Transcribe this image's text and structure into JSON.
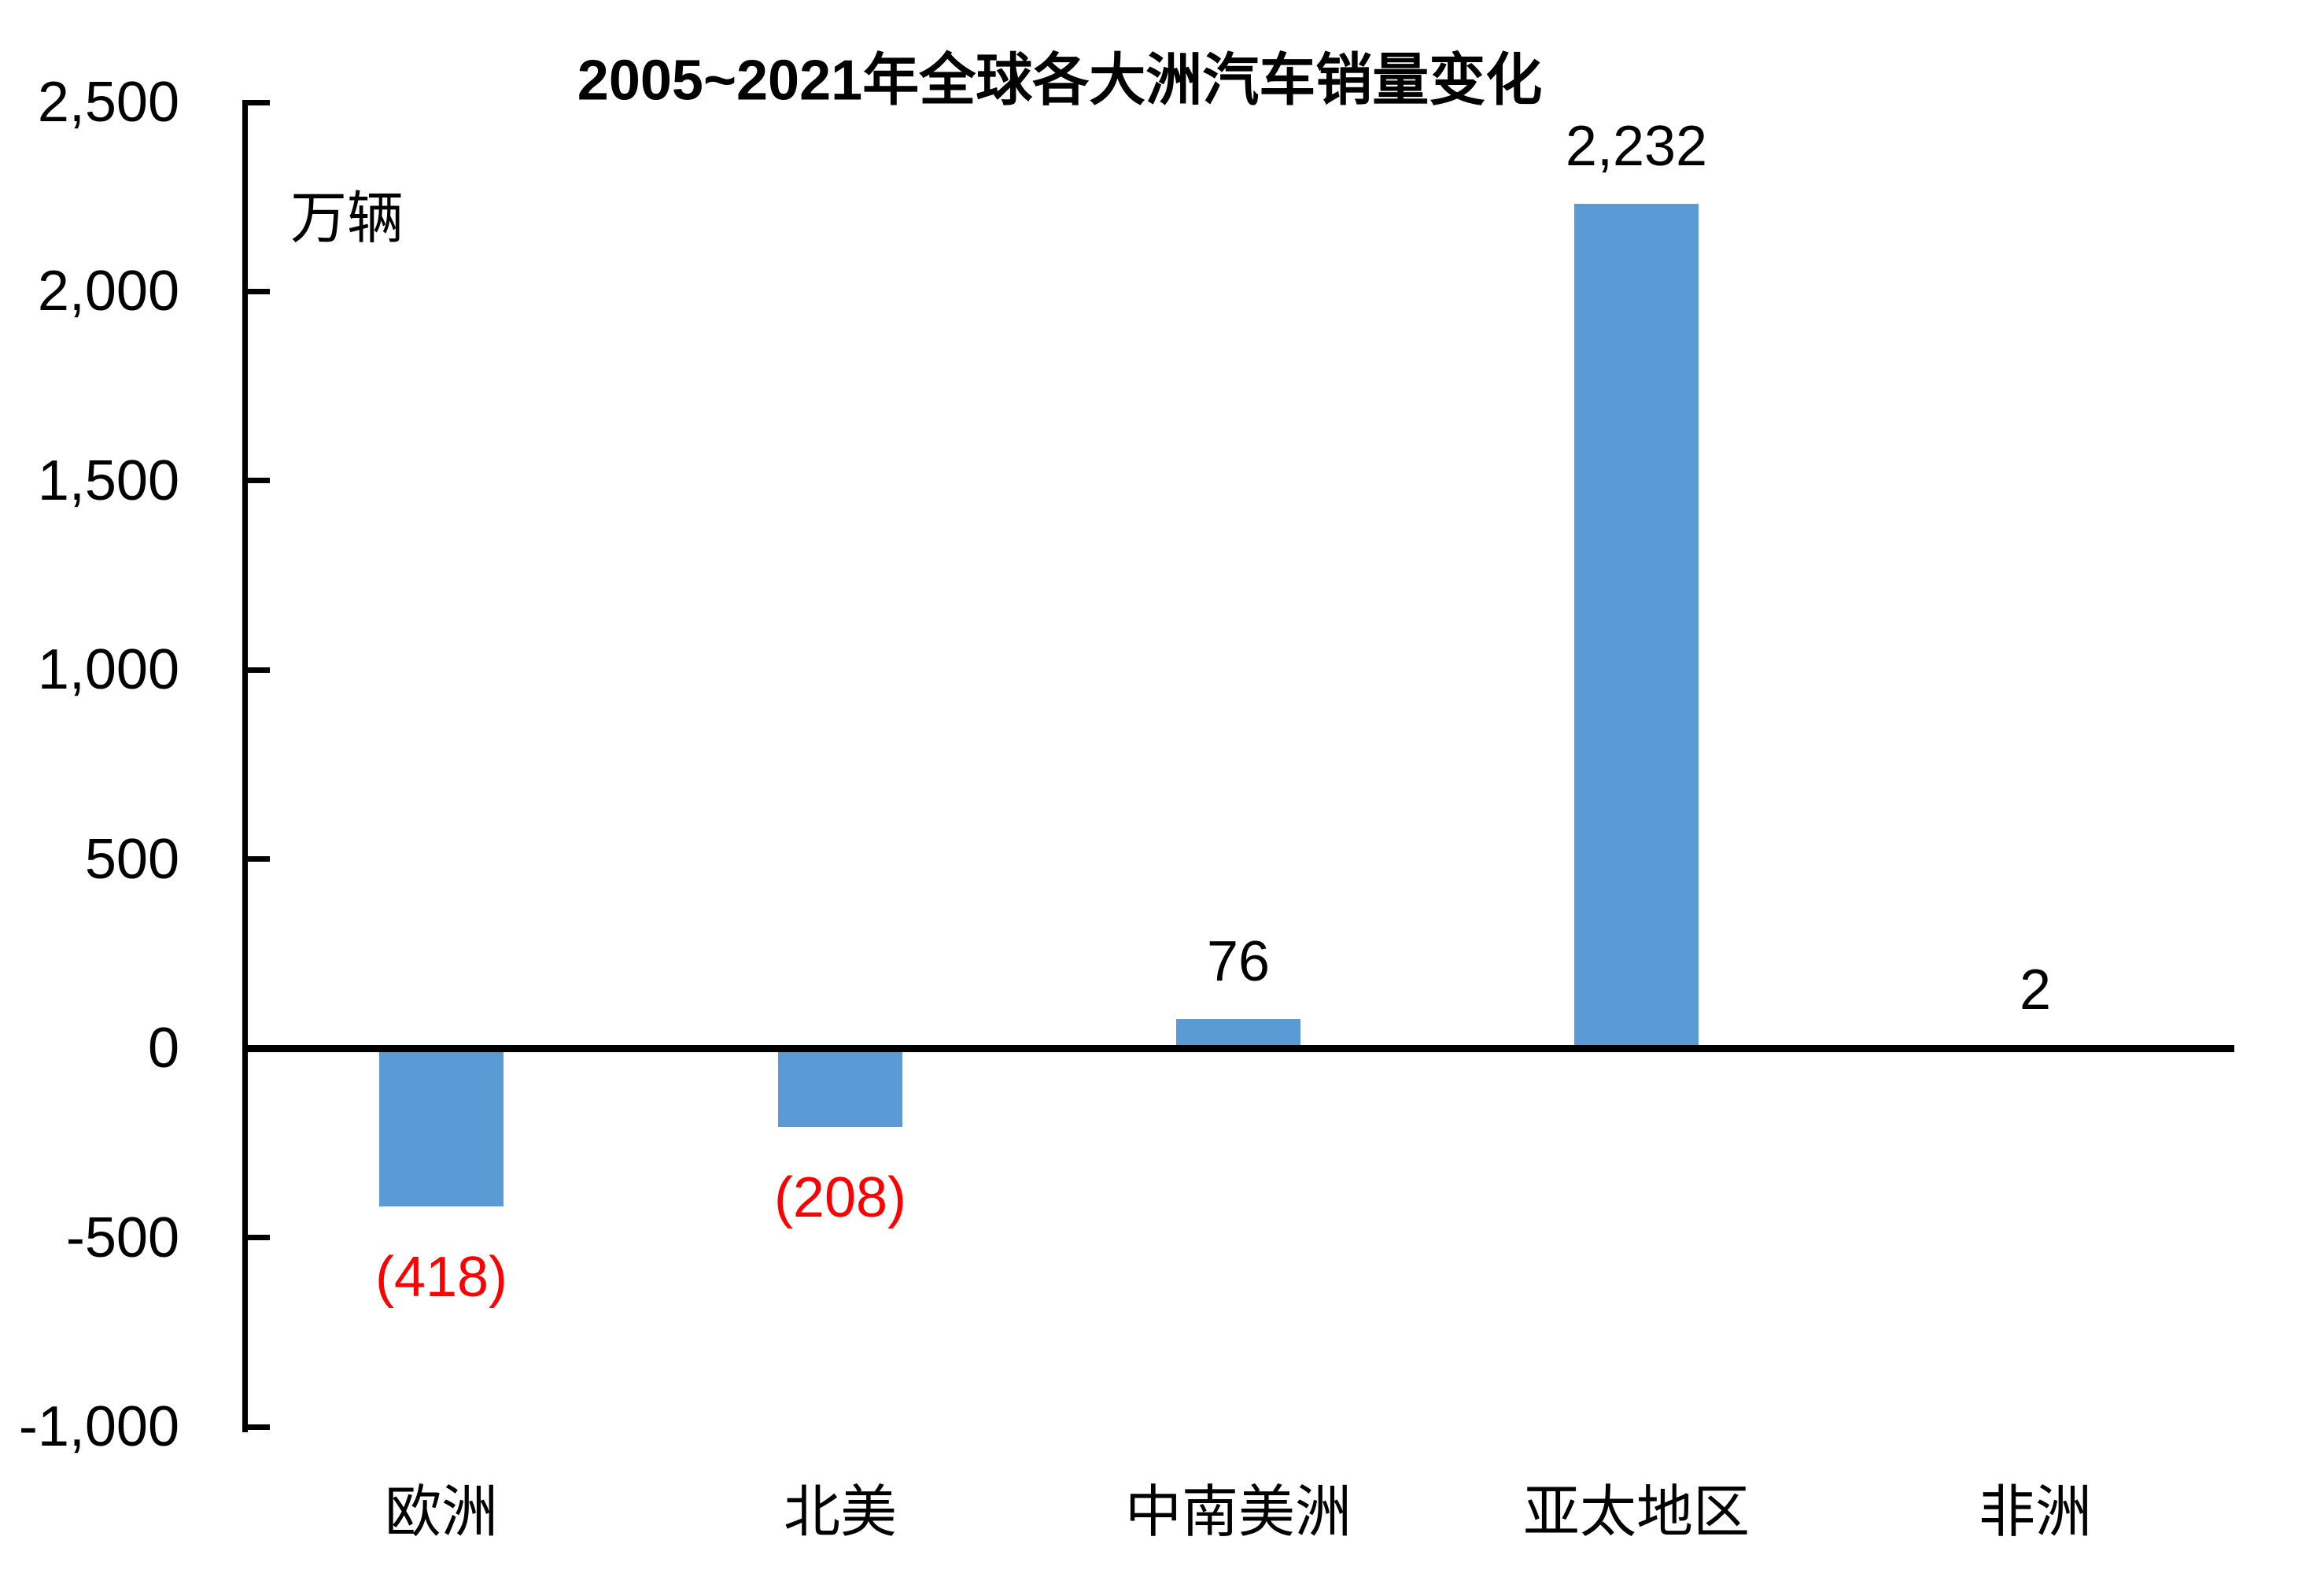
{
  "chart_data": {
    "type": "bar",
    "title": "2005~2021年全球各大洲汽车销量变化",
    "unit_label": "万辆",
    "categories": [
      "欧洲",
      "北美",
      "中南美洲",
      "亚太地区",
      "非洲"
    ],
    "values": [
      -418,
      -208,
      76,
      2232,
      2
    ],
    "data_labels": [
      "(418)",
      "(208)",
      "76",
      "2,232",
      "2"
    ],
    "data_label_styles": [
      "negative",
      "negative",
      "default",
      "default",
      "default"
    ],
    "ylim": [
      -1000,
      2500
    ],
    "y_ticks": [
      {
        "value": 2500,
        "label": "2,500"
      },
      {
        "value": 2000,
        "label": "2,000"
      },
      {
        "value": 1500,
        "label": "1,500"
      },
      {
        "value": 1000,
        "label": "1,000"
      },
      {
        "value": 500,
        "label": "500"
      },
      {
        "value": 0,
        "label": "0"
      },
      {
        "value": -500,
        "label": "-500"
      },
      {
        "value": -1000,
        "label": "-1,000"
      }
    ],
    "grid": false,
    "legend": false,
    "colors": {
      "bar": "#5B9BD5",
      "negative_label": "#FF0000",
      "default_label": "#000000",
      "axis": "#000000",
      "background": "#FFFFFF"
    }
  }
}
